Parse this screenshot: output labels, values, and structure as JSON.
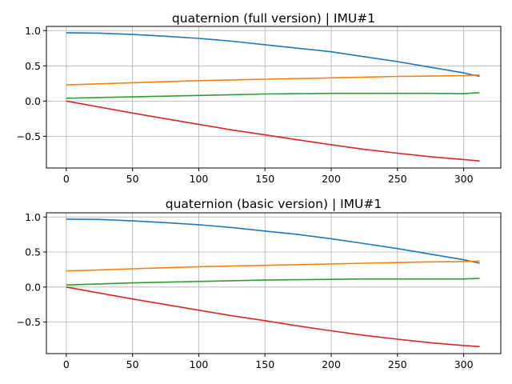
{
  "chart_data": [
    {
      "type": "line",
      "title": "quaternion (full version) | IMU#1",
      "xlabel": "",
      "ylabel": "",
      "xlim": [
        -15,
        328
      ],
      "ylim": [
        -0.95,
        1.06
      ],
      "xticks": [
        0,
        50,
        100,
        150,
        200,
        250,
        300
      ],
      "yticks": [
        -0.5,
        0.0,
        0.5,
        1.0
      ],
      "xtick_labels": [
        "0",
        "50",
        "100",
        "150",
        "200",
        "250",
        "300"
      ],
      "ytick_labels": [
        "−0.5",
        "0.0",
        "0.5",
        "1.0"
      ],
      "grid": true,
      "series": [
        {
          "color": "#1f77b4",
          "x": [
            0,
            25,
            50,
            75,
            100,
            125,
            150,
            175,
            200,
            225,
            250,
            275,
            300,
            312
          ],
          "y": [
            0.97,
            0.965,
            0.945,
            0.92,
            0.89,
            0.85,
            0.8,
            0.75,
            0.7,
            0.63,
            0.56,
            0.48,
            0.4,
            0.35
          ]
        },
        {
          "color": "#ff7f0e",
          "x": [
            0,
            25,
            50,
            75,
            100,
            125,
            150,
            175,
            200,
            225,
            250,
            275,
            300,
            312
          ],
          "y": [
            0.23,
            0.245,
            0.26,
            0.275,
            0.29,
            0.3,
            0.31,
            0.32,
            0.33,
            0.34,
            0.35,
            0.355,
            0.36,
            0.37
          ]
        },
        {
          "color": "#2ca02c",
          "x": [
            0,
            25,
            50,
            75,
            100,
            125,
            150,
            175,
            200,
            225,
            250,
            275,
            300,
            312
          ],
          "y": [
            0.04,
            0.05,
            0.06,
            0.07,
            0.08,
            0.09,
            0.1,
            0.105,
            0.11,
            0.11,
            0.11,
            0.11,
            0.105,
            0.12
          ]
        },
        {
          "color": "#d62728",
          "x": [
            0,
            25,
            50,
            75,
            100,
            125,
            150,
            175,
            200,
            225,
            250,
            275,
            300,
            312
          ],
          "y": [
            0.0,
            -0.085,
            -0.17,
            -0.25,
            -0.33,
            -0.41,
            -0.48,
            -0.55,
            -0.62,
            -0.685,
            -0.74,
            -0.79,
            -0.83,
            -0.85
          ]
        }
      ]
    },
    {
      "type": "line",
      "title": "quaternion (basic version)  | IMU#1",
      "xlabel": "",
      "ylabel": "",
      "xlim": [
        -15,
        328
      ],
      "ylim": [
        -0.95,
        1.06
      ],
      "xticks": [
        0,
        50,
        100,
        150,
        200,
        250,
        300
      ],
      "yticks": [
        -0.5,
        0.0,
        0.5,
        1.0
      ],
      "xtick_labels": [
        "0",
        "50",
        "100",
        "150",
        "200",
        "250",
        "300"
      ],
      "ytick_labels": [
        "−0.5",
        "0.0",
        "0.5",
        "1.0"
      ],
      "grid": true,
      "series": [
        {
          "color": "#1f77b4",
          "x": [
            0,
            25,
            50,
            75,
            100,
            125,
            150,
            175,
            200,
            225,
            250,
            275,
            300,
            312
          ],
          "y": [
            0.97,
            0.965,
            0.945,
            0.92,
            0.89,
            0.85,
            0.8,
            0.75,
            0.69,
            0.62,
            0.55,
            0.47,
            0.39,
            0.34
          ]
        },
        {
          "color": "#ff7f0e",
          "x": [
            0,
            25,
            50,
            75,
            100,
            125,
            150,
            175,
            200,
            225,
            250,
            275,
            300,
            312
          ],
          "y": [
            0.23,
            0.245,
            0.26,
            0.275,
            0.29,
            0.3,
            0.31,
            0.32,
            0.33,
            0.34,
            0.35,
            0.36,
            0.365,
            0.37
          ]
        },
        {
          "color": "#2ca02c",
          "x": [
            0,
            25,
            50,
            75,
            100,
            125,
            150,
            175,
            200,
            225,
            250,
            275,
            300,
            312
          ],
          "y": [
            0.03,
            0.045,
            0.06,
            0.07,
            0.08,
            0.09,
            0.1,
            0.105,
            0.11,
            0.115,
            0.115,
            0.115,
            0.115,
            0.125
          ]
        },
        {
          "color": "#d62728",
          "x": [
            0,
            25,
            50,
            75,
            100,
            125,
            150,
            175,
            200,
            225,
            250,
            275,
            300,
            312
          ],
          "y": [
            0.0,
            -0.085,
            -0.17,
            -0.25,
            -0.33,
            -0.41,
            -0.48,
            -0.555,
            -0.625,
            -0.69,
            -0.745,
            -0.795,
            -0.835,
            -0.85
          ]
        }
      ]
    }
  ]
}
